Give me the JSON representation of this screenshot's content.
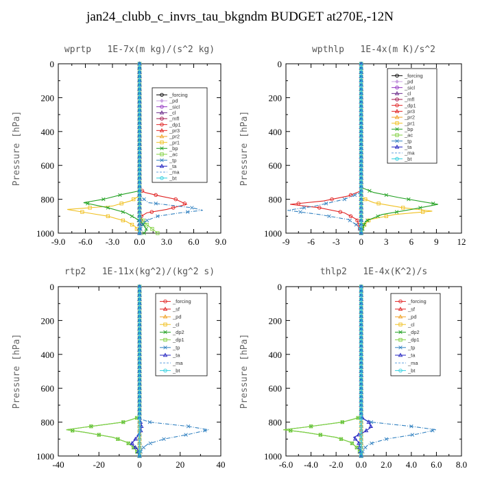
{
  "title": "jan24_clubb_c_invrs_tau_bkgndm  BUDGET at270E,-12N",
  "chart_data": [
    {
      "type": "line",
      "title": "wprtp   1E-7x(m kg)/(s^2 kg)",
      "ylabel": "Pressure [hPa]",
      "xlim": [
        -9,
        9
      ],
      "ylim": [
        0,
        1000
      ],
      "xticks": [
        -9,
        -6,
        -3,
        0,
        3,
        6,
        9
      ],
      "xtick_labels": [
        "-9.0",
        "-6.0",
        "-3.0",
        "0.0",
        "3.0",
        "6.0",
        "9.0"
      ],
      "yticks": [
        0,
        200,
        400,
        600,
        800,
        1000
      ],
      "y_reversed": true,
      "legend_position": "upper-right",
      "series": [
        {
          "name": "_forcing",
          "color": "#000000",
          "marker": "circle",
          "y": [
            0,
            1000
          ],
          "x": [
            0,
            0
          ]
        },
        {
          "name": "_pd",
          "color": "#c8a0e0",
          "marker": "diamond",
          "y": [
            0,
            1000
          ],
          "x": [
            0,
            0
          ]
        },
        {
          "name": "_sicl",
          "color": "#9030c0",
          "marker": "circle",
          "y": [
            0,
            1000
          ],
          "x": [
            0,
            0
          ]
        },
        {
          "name": "_cl",
          "color": "#6a2a8a",
          "marker": "triangle",
          "y": [
            0,
            1000
          ],
          "x": [
            0,
            0
          ]
        },
        {
          "name": "_mfl",
          "color": "#a0104a",
          "marker": "circle",
          "y": [
            0,
            1000
          ],
          "x": [
            0,
            0
          ]
        },
        {
          "name": "_dp1",
          "color": "#e02020",
          "marker": "circle",
          "y": [
            0,
            740,
            760,
            780,
            800,
            830,
            860,
            880,
            900,
            930,
            960,
            1000
          ],
          "x": [
            0,
            0,
            0.6,
            2.2,
            4.0,
            5.2,
            3.0,
            0.8,
            0.2,
            0.1,
            0,
            0
          ]
        },
        {
          "name": "_pr3",
          "color": "#e02020",
          "marker": "triangle",
          "y": [
            0,
            1000
          ],
          "x": [
            0,
            0
          ]
        },
        {
          "name": "_pr2",
          "color": "#f0a020",
          "marker": "triangle",
          "y": [
            0,
            1000
          ],
          "x": [
            0,
            0
          ]
        },
        {
          "name": "_pr1",
          "color": "#f0c020",
          "marker": "square",
          "y": [
            0,
            780,
            810,
            840,
            860,
            880,
            900,
            930,
            960,
            1000
          ],
          "x": [
            0,
            0,
            -1.0,
            -3.0,
            -8.0,
            -5.8,
            -3.5,
            -1.5,
            -0.5,
            0
          ]
        },
        {
          "name": "_bp",
          "color": "#20a020",
          "marker": "cross",
          "y": [
            0,
            750,
            770,
            800,
            820,
            850,
            880,
            910,
            940,
            980,
            1000
          ],
          "x": [
            0,
            0,
            -1.8,
            -4.0,
            -6.2,
            -3.5,
            -1.5,
            -0.5,
            0.3,
            0.8,
            0.5
          ]
        },
        {
          "name": "_ac",
          "color": "#80d040",
          "marker": "square",
          "y": [
            0,
            900,
            950,
            1000
          ],
          "x": [
            0,
            0,
            0.8,
            2.0
          ]
        },
        {
          "name": "_tp",
          "color": "#3080c0",
          "marker": "cross",
          "y": [
            0,
            780,
            820,
            850,
            865,
            880,
            900,
            930,
            960,
            1000
          ],
          "x": [
            0,
            0,
            1.0,
            5.8,
            7.0,
            4.5,
            2.0,
            0.6,
            0.2,
            0
          ]
        },
        {
          "name": "_ta",
          "color": "#2020c0",
          "marker": "triangle",
          "y": [
            0,
            1000
          ],
          "x": [
            0,
            0
          ]
        },
        {
          "name": "_ma",
          "color": "#60a0e0",
          "marker": "none",
          "y": [
            0,
            1000
          ],
          "x": [
            0,
            0
          ]
        },
        {
          "name": "_bt",
          "color": "#30d0e0",
          "marker": "circle",
          "y": [
            0,
            1000
          ],
          "x": [
            0,
            0
          ]
        }
      ]
    },
    {
      "type": "line",
      "title": "wpthlp   1E-4x(m K)/s^2",
      "ylabel": "Pressure [hPa]",
      "xlim": [
        -9,
        12
      ],
      "ylim": [
        0,
        1000
      ],
      "xticks": [
        -9,
        -6,
        -3,
        0,
        3,
        6,
        9,
        12
      ],
      "xtick_labels": [
        "-9",
        "-6",
        "-3",
        "0",
        "3",
        "6",
        "9",
        "12"
      ],
      "yticks": [
        0,
        200,
        400,
        600,
        800,
        1000
      ],
      "y_reversed": true,
      "legend_position": "upper-right",
      "series": [
        {
          "name": "_forcing",
          "color": "#000000",
          "marker": "circle",
          "y": [
            0,
            1000
          ],
          "x": [
            0,
            0
          ]
        },
        {
          "name": "_pd",
          "color": "#c8a0e0",
          "marker": "diamond",
          "y": [
            0,
            1000
          ],
          "x": [
            0,
            0
          ]
        },
        {
          "name": "_sicl",
          "color": "#9030c0",
          "marker": "circle",
          "y": [
            0,
            1000
          ],
          "x": [
            0,
            0
          ]
        },
        {
          "name": "_cl",
          "color": "#6a2a8a",
          "marker": "triangle",
          "y": [
            0,
            1000
          ],
          "x": [
            0,
            0
          ]
        },
        {
          "name": "_mfl",
          "color": "#a0104a",
          "marker": "circle",
          "y": [
            0,
            1000
          ],
          "x": [
            0,
            0
          ]
        },
        {
          "name": "_dp1",
          "color": "#e02020",
          "marker": "circle",
          "y": [
            0,
            750,
            780,
            810,
            830,
            850,
            880,
            920,
            1000
          ],
          "x": [
            0,
            0,
            -1.5,
            -4.5,
            -8.5,
            -5.0,
            -2.0,
            -0.5,
            0
          ]
        },
        {
          "name": "_pr3",
          "color": "#e02020",
          "marker": "triangle",
          "y": [
            0,
            1000
          ],
          "x": [
            0,
            0
          ]
        },
        {
          "name": "_pr2",
          "color": "#f0a020",
          "marker": "triangle",
          "y": [
            0,
            1000
          ],
          "x": [
            0,
            0
          ]
        },
        {
          "name": "_pr1",
          "color": "#f0c020",
          "marker": "square",
          "y": [
            0,
            790,
            820,
            850,
            870,
            890,
            920,
            960,
            1000
          ],
          "x": [
            0,
            0,
            1.5,
            5.0,
            8.5,
            4.0,
            1.0,
            0.2,
            0
          ]
        },
        {
          "name": "_bp",
          "color": "#20a020",
          "marker": "cross",
          "y": [
            0,
            730,
            760,
            790,
            830,
            860,
            890,
            930,
            1000
          ],
          "x": [
            0,
            0,
            1.5,
            4.5,
            9.2,
            6.0,
            2.5,
            0.5,
            0
          ]
        },
        {
          "name": "_ac",
          "color": "#80d040",
          "marker": "square",
          "y": [
            0,
            1000
          ],
          "x": [
            0,
            0
          ]
        },
        {
          "name": "_tp",
          "color": "#3080c0",
          "marker": "cross",
          "y": [
            0,
            760,
            800,
            840,
            865,
            890,
            920,
            960,
            1000
          ],
          "x": [
            0,
            0,
            -2.0,
            -5.5,
            -8.8,
            -5.0,
            -1.5,
            -0.3,
            0
          ]
        },
        {
          "name": "_ta",
          "color": "#2020c0",
          "marker": "triangle",
          "y": [
            0,
            1000
          ],
          "x": [
            0,
            0
          ]
        },
        {
          "name": "_ma",
          "color": "#60a0e0",
          "marker": "none",
          "y": [
            0,
            1000
          ],
          "x": [
            0,
            0
          ]
        },
        {
          "name": "_bt",
          "color": "#30d0e0",
          "marker": "circle",
          "y": [
            0,
            1000
          ],
          "x": [
            0,
            0
          ]
        }
      ]
    },
    {
      "type": "line",
      "title": "rtp2   1E-11x(kg^2)/(kg^2 s)",
      "ylabel": "Pressure [hPa]",
      "xlim": [
        -40,
        40
      ],
      "ylim": [
        0,
        1000
      ],
      "xticks": [
        -40,
        -20,
        0,
        20,
        40
      ],
      "xtick_labels": [
        "-40",
        "-20",
        "0",
        "20",
        "40"
      ],
      "yticks": [
        0,
        200,
        400,
        600,
        800,
        1000
      ],
      "y_reversed": true,
      "legend_position": "upper-right",
      "series": [
        {
          "name": "_forcing",
          "color": "#e02020",
          "marker": "circle",
          "y": [
            0,
            1000
          ],
          "x": [
            0,
            0
          ]
        },
        {
          "name": "_sf",
          "color": "#e02020",
          "marker": "triangle",
          "y": [
            0,
            1000
          ],
          "x": [
            0,
            0
          ]
        },
        {
          "name": "_pd",
          "color": "#f0a020",
          "marker": "triangle",
          "y": [
            0,
            1000
          ],
          "x": [
            0,
            0
          ]
        },
        {
          "name": "_cl",
          "color": "#f0c020",
          "marker": "square",
          "y": [
            0,
            1000
          ],
          "x": [
            0,
            0
          ]
        },
        {
          "name": "_dp2",
          "color": "#20a020",
          "marker": "cross",
          "y": [
            0,
            770,
            800,
            830,
            845,
            860,
            890,
            920,
            960,
            1000
          ],
          "x": [
            0,
            0,
            -8,
            -27,
            -36,
            -27,
            -13,
            -6,
            -2,
            0
          ]
        },
        {
          "name": "_dp1",
          "color": "#80d040",
          "marker": "square",
          "y": [
            0,
            770,
            800,
            830,
            845,
            860,
            890,
            920,
            960,
            1000
          ],
          "x": [
            0,
            0,
            -8,
            -27,
            -36,
            -27,
            -13,
            -6,
            -2,
            0
          ]
        },
        {
          "name": "_tp",
          "color": "#3080c0",
          "marker": "cross",
          "y": [
            0,
            780,
            800,
            825,
            845,
            870,
            900,
            930,
            960,
            1000
          ],
          "x": [
            0,
            0,
            5,
            24,
            34,
            25,
            12,
            4,
            1,
            0
          ]
        },
        {
          "name": "_ta",
          "color": "#2020c0",
          "marker": "triangle",
          "y": [
            0,
            780,
            820,
            860,
            900,
            930,
            960,
            1000
          ],
          "x": [
            0,
            0,
            1,
            0.5,
            -2,
            -4,
            -1,
            0
          ]
        },
        {
          "name": "_ma",
          "color": "#60a0e0",
          "marker": "none",
          "y": [
            0,
            1000
          ],
          "x": [
            0,
            0
          ]
        },
        {
          "name": "_bt",
          "color": "#30d0e0",
          "marker": "circle",
          "y": [
            0,
            1000
          ],
          "x": [
            0,
            0
          ]
        }
      ]
    },
    {
      "type": "line",
      "title": "thlp2   1E-4x(K^2)/s",
      "ylabel": "Pressure [hPa]",
      "xlim": [
        -6,
        8
      ],
      "ylim": [
        0,
        1000
      ],
      "xticks": [
        -6,
        -4,
        -2,
        0,
        2,
        4,
        6,
        8
      ],
      "xtick_labels": [
        "-6.0",
        "-4.0",
        "-2.0",
        "0.0",
        "2.0",
        "4.0",
        "6.0",
        "8.0"
      ],
      "yticks": [
        0,
        200,
        400,
        600,
        800,
        1000
      ],
      "y_reversed": true,
      "legend_position": "upper-right",
      "series": [
        {
          "name": "_forcing",
          "color": "#e02020",
          "marker": "circle",
          "y": [
            0,
            1000
          ],
          "x": [
            0,
            0
          ]
        },
        {
          "name": "_sf",
          "color": "#e02020",
          "marker": "triangle",
          "y": [
            0,
            1000
          ],
          "x": [
            0,
            0
          ]
        },
        {
          "name": "_pd",
          "color": "#f0a020",
          "marker": "triangle",
          "y": [
            0,
            1000
          ],
          "x": [
            0,
            0
          ]
        },
        {
          "name": "_cl",
          "color": "#f0c020",
          "marker": "square",
          "y": [
            0,
            1000
          ],
          "x": [
            0,
            0
          ]
        },
        {
          "name": "_dp2",
          "color": "#20a020",
          "marker": "cross",
          "y": [
            0,
            770,
            800,
            830,
            845,
            860,
            890,
            920,
            960,
            1000
          ],
          "x": [
            0,
            0,
            -1.5,
            -4.5,
            -6.2,
            -4.5,
            -2.0,
            -0.8,
            -0.2,
            0
          ]
        },
        {
          "name": "_dp1",
          "color": "#80d040",
          "marker": "square",
          "y": [
            0,
            770,
            800,
            830,
            845,
            860,
            890,
            920,
            960,
            1000
          ],
          "x": [
            0,
            0,
            -1.5,
            -4.5,
            -6.2,
            -4.5,
            -2.0,
            -0.8,
            -0.2,
            0
          ]
        },
        {
          "name": "_tp",
          "color": "#3080c0",
          "marker": "cross",
          "y": [
            0,
            780,
            800,
            825,
            845,
            870,
            900,
            930,
            960,
            1000
          ],
          "x": [
            0,
            0,
            0.8,
            4.0,
            6.0,
            4.5,
            2.0,
            0.6,
            0.2,
            0
          ]
        },
        {
          "name": "_ta",
          "color": "#2020c0",
          "marker": "triangle",
          "y": [
            0,
            770,
            800,
            830,
            860,
            890,
            920,
            1000
          ],
          "x": [
            0,
            0,
            0.6,
            0.8,
            0.2,
            -0.6,
            -0.2,
            0
          ]
        },
        {
          "name": "_ma",
          "color": "#60a0e0",
          "marker": "none",
          "y": [
            0,
            1000
          ],
          "x": [
            0,
            0
          ]
        },
        {
          "name": "_bt",
          "color": "#30d0e0",
          "marker": "circle",
          "y": [
            0,
            1000
          ],
          "x": [
            0,
            0
          ]
        }
      ]
    }
  ]
}
